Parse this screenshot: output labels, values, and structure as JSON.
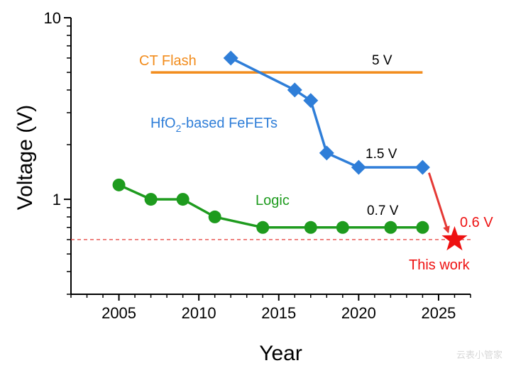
{
  "chart_data": {
    "type": "line",
    "xlabel": "Year",
    "ylabel": "Voltage (V)",
    "yscale": "log",
    "xlim": [
      2002,
      2027
    ],
    "ylim": [
      0.3,
      10
    ],
    "x_ticks": [
      "2005",
      "2010",
      "2015",
      "2020",
      "2025"
    ],
    "y_ticks": [
      "1",
      "10"
    ],
    "series": [
      {
        "name": "CT Flash",
        "color": "#f28c1c",
        "marker": "none",
        "points": [
          [
            2007,
            5
          ],
          [
            2024,
            5
          ]
        ],
        "value_label": "5 V"
      },
      {
        "name": "HfO₂-based FeFETs",
        "color": "#2f7ed8",
        "marker": "diamond",
        "points": [
          [
            2012,
            6.0
          ],
          [
            2016,
            4.0
          ],
          [
            2017,
            3.5
          ],
          [
            2018,
            1.8
          ],
          [
            2020,
            1.5
          ],
          [
            2024,
            1.5
          ]
        ],
        "value_label": "1.5 V"
      },
      {
        "name": "Logic",
        "color": "#1e9b1e",
        "marker": "circle",
        "points": [
          [
            2005,
            1.2
          ],
          [
            2007,
            1.0
          ],
          [
            2009,
            1.0
          ],
          [
            2011,
            0.8
          ],
          [
            2014,
            0.7
          ],
          [
            2017,
            0.7
          ],
          [
            2019,
            0.7
          ],
          [
            2022,
            0.7
          ],
          [
            2024,
            0.7
          ]
        ],
        "value_label": "0.7 V"
      }
    ],
    "reference_line": {
      "y": 0.6,
      "color": "#e53935",
      "style": "dashed"
    },
    "highlight": {
      "x": 2026,
      "y": 0.6,
      "marker": "star",
      "color": "#ee1111",
      "value_label": "0.6 V",
      "caption": "This work"
    },
    "arrow": {
      "from": [
        2024.4,
        1.4
      ],
      "to": [
        2025.6,
        0.66
      ],
      "color": "#e53935"
    }
  },
  "watermark": "云表小管家"
}
